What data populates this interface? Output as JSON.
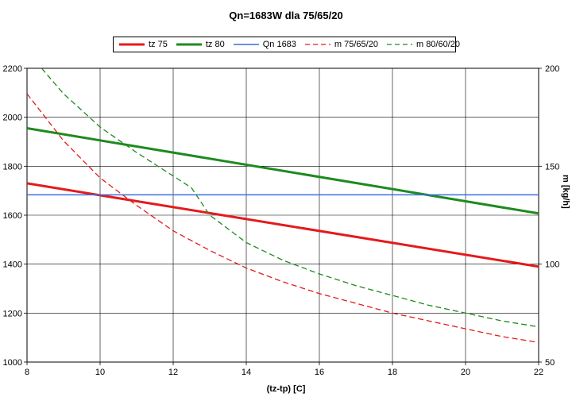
{
  "chart_data": {
    "type": "line",
    "title": "Qn=1683W dla 75/65/20",
    "xlabel": "(tz-tp) [C]",
    "ylabel": "",
    "y2label": "m [kg/h]",
    "xlim": [
      8,
      22
    ],
    "ylim": [
      1000,
      2200
    ],
    "y2lim": [
      50,
      200
    ],
    "x_ticks": [
      "8",
      "10",
      "12",
      "14",
      "16",
      "18",
      "20",
      "22"
    ],
    "y_ticks": [
      "1000",
      "1200",
      "1400",
      "1600",
      "1800",
      "2000",
      "2200"
    ],
    "y2_ticks": [
      "50",
      "100",
      "150",
      "200"
    ],
    "grid": true,
    "legend_position": "top",
    "series": [
      {
        "name": "tz 75",
        "axis": "left",
        "color": "#e41a1c",
        "style": "solid",
        "width": 3,
        "x": [
          8,
          22
        ],
        "y": [
          1730,
          1390
        ]
      },
      {
        "name": "tz 80",
        "axis": "left",
        "color": "#1e8a1e",
        "style": "solid",
        "width": 3,
        "x": [
          8,
          22
        ],
        "y": [
          1955,
          1607
        ]
      },
      {
        "name": "Qn 1683",
        "axis": "left",
        "color": "#3a6fe0",
        "style": "solid",
        "width": 1.5,
        "x": [
          8,
          22
        ],
        "y": [
          1683,
          1683
        ]
      },
      {
        "name": "m 75/65/20",
        "axis": "right",
        "color": "#e41a1c",
        "style": "dashed",
        "width": 1.3,
        "x": [
          8,
          9,
          10,
          10.5,
          11,
          12,
          13,
          14,
          15,
          16,
          17,
          18,
          19,
          20,
          21,
          22
        ],
        "y": [
          187,
          163,
          144,
          137,
          130,
          117,
          107,
          98,
          91,
          85,
          80,
          75,
          71,
          67,
          63,
          60
        ]
      },
      {
        "name": "m 80/60/20",
        "axis": "right",
        "color": "#1e8a1e",
        "style": "dashed",
        "width": 1.3,
        "x": [
          8.4,
          9,
          10,
          11,
          12,
          12.5,
          13,
          14,
          15,
          16,
          17,
          18,
          19,
          20,
          21,
          22
        ],
        "y": [
          200,
          187,
          170,
          157,
          145,
          139,
          125,
          111,
          102,
          95,
          89,
          84,
          79,
          75,
          71,
          68
        ]
      }
    ]
  }
}
